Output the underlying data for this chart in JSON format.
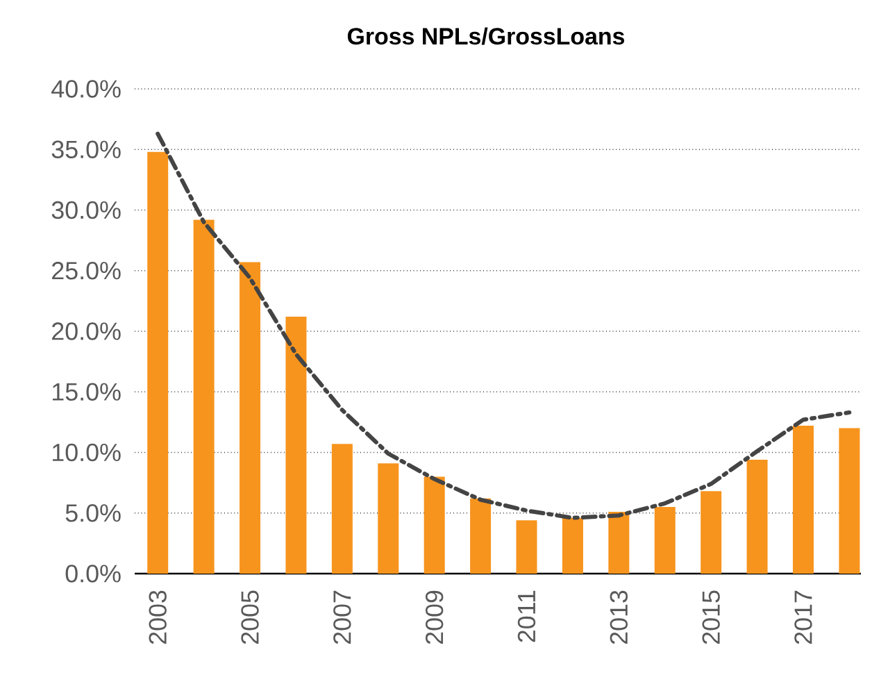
{
  "chart_data": {
    "type": "bar",
    "title": "Gross NPLs/GrossLoans",
    "categories": [
      "2003",
      null,
      "2005",
      null,
      "2007",
      null,
      "2009",
      null,
      "2011",
      null,
      "2013",
      null,
      "2015",
      null,
      "2017",
      null
    ],
    "series": [
      {
        "color": "#f7941d",
        "values": [
          34.8,
          29.2,
          25.7,
          21.2,
          10.7,
          9.1,
          8.0,
          6.2,
          4.4,
          4.6,
          5.1,
          5.5,
          6.8,
          9.4,
          12.2,
          12.0
        ]
      },
      {
        "type": "line",
        "color": "#444444",
        "line_style": "dashed",
        "values": [
          36.3,
          29.0,
          24.4,
          18.1,
          13.5,
          9.9,
          7.8,
          6.1,
          5.2,
          4.6,
          4.8,
          5.8,
          7.4,
          10.1,
          12.7,
          13.3
        ]
      }
    ],
    "ylim": [
      0,
      40
    ],
    "yticks": [
      {
        "value": 0,
        "label": "0.0%"
      },
      {
        "value": 5,
        "label": "5.0%"
      },
      {
        "value": 10,
        "label": "10.0%"
      },
      {
        "value": 15,
        "label": "15.0%"
      },
      {
        "value": 20,
        "label": "20.0%"
      },
      {
        "value": 25,
        "label": "25.0%"
      },
      {
        "value": 30,
        "label": "30.0%"
      },
      {
        "value": 35,
        "label": "35.0%"
      },
      {
        "value": 40,
        "label": "40.0%"
      }
    ],
    "grid": "y"
  }
}
